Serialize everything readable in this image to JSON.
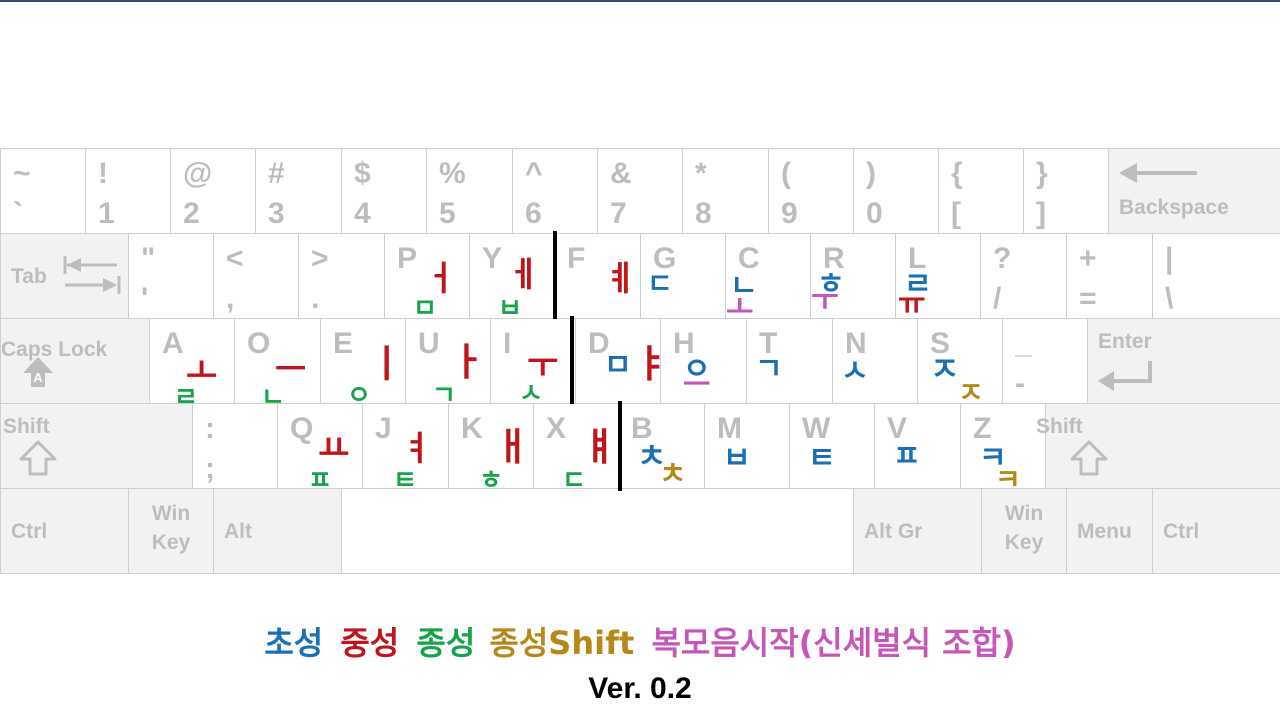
{
  "colors": {
    "choseong": "#1a6fb5",
    "jungseong": "#c0151b",
    "jongseong": "#16a34a",
    "jongseong_shift": "#b8871a",
    "bokmoeum": "#c756b9",
    "key_legend": "#bdbdbd",
    "key_border": "#cfcfcf",
    "modifier_fill": "#f2f2f2",
    "separator": "#000000"
  },
  "rows": [
    {
      "name": "number-row",
      "keys": [
        {
          "top": "~",
          "bottom": "`"
        },
        {
          "top": "!",
          "bottom": "1"
        },
        {
          "top": "@",
          "bottom": "2"
        },
        {
          "top": "#",
          "bottom": "3"
        },
        {
          "top": "$",
          "bottom": "4"
        },
        {
          "top": "%",
          "bottom": "5"
        },
        {
          "top": "^",
          "bottom": "6"
        },
        {
          "top": "&",
          "bottom": "7"
        },
        {
          "top": "*",
          "bottom": "8"
        },
        {
          "top": "(",
          "bottom": "9"
        },
        {
          "top": ")",
          "bottom": "0"
        },
        {
          "top": "{",
          "bottom": "["
        },
        {
          "top": "}",
          "bottom": "]"
        },
        {
          "label": "Backspace",
          "icon": "backspace-arrow-icon",
          "modifier": true
        }
      ]
    },
    {
      "name": "top-row",
      "keys": [
        {
          "label": "Tab",
          "icon": "tab-arrows-icon",
          "modifier": true
        },
        {
          "top": "\"",
          "bottom": "'"
        },
        {
          "top": "<",
          "bottom": ","
        },
        {
          "top": ">",
          "bottom": "."
        },
        {
          "top": "P",
          "hangul": [
            {
              "char": "ㅓ",
              "role": "jungseong"
            },
            {
              "char": "ㅁ",
              "role": "jongseong"
            }
          ]
        },
        {
          "top": "Y",
          "hangul": [
            {
              "char": "ㅔ",
              "role": "jungseong"
            },
            {
              "char": "ㅂ",
              "role": "jongseong"
            }
          ]
        },
        {
          "top": "F",
          "hangul": [
            {
              "char": "ㅖ",
              "role": "jungseong"
            }
          ]
        },
        {
          "top": "G",
          "hangul": [
            {
              "char": "ㄷ",
              "role": "choseong"
            }
          ]
        },
        {
          "top": "C",
          "hangul": [
            {
              "char": "ㄴ",
              "role": "choseong"
            },
            {
              "char": "ㅗ",
              "role": "bokmoeum"
            }
          ]
        },
        {
          "top": "R",
          "hangul": [
            {
              "char": "ㅎ",
              "role": "choseong"
            },
            {
              "char": "ㅜ",
              "role": "bokmoeum"
            }
          ]
        },
        {
          "top": "L",
          "hangul": [
            {
              "char": "ㄹ",
              "role": "choseong"
            },
            {
              "char": "ㅠ",
              "role": "jungseong"
            }
          ]
        },
        {
          "top": "?",
          "bottom": "/"
        },
        {
          "top": "+",
          "bottom": "="
        },
        {
          "top": "|",
          "bottom": "\\"
        }
      ]
    },
    {
      "name": "home-row",
      "keys": [
        {
          "label": "Caps Lock",
          "icon": "caps-lock-icon",
          "modifier": true
        },
        {
          "top": "A",
          "hangul": [
            {
              "char": "ㅗ",
              "role": "jungseong"
            },
            {
              "char": "ㄹ",
              "role": "jongseong"
            }
          ]
        },
        {
          "top": "O",
          "hangul": [
            {
              "char": "ㅡ",
              "role": "jungseong"
            },
            {
              "char": "ㄴ",
              "role": "jongseong"
            }
          ]
        },
        {
          "top": "E",
          "hangul": [
            {
              "char": "ㅣ",
              "role": "jungseong"
            },
            {
              "char": "ㅇ",
              "role": "jongseong"
            }
          ]
        },
        {
          "top": "U",
          "hangul": [
            {
              "char": "ㅏ",
              "role": "jungseong"
            },
            {
              "char": "ㄱ",
              "role": "jongseong"
            }
          ]
        },
        {
          "top": "I",
          "hangul": [
            {
              "char": "ㅜ",
              "role": "jungseong"
            },
            {
              "char": "ㅅ",
              "role": "jongseong"
            }
          ]
        },
        {
          "top": "D",
          "hangul": [
            {
              "char": "ㅁ",
              "role": "choseong"
            },
            {
              "char": "ㅑ",
              "role": "jungseong"
            }
          ]
        },
        {
          "top": "H",
          "hangul": [
            {
              "char": "ㅇ",
              "role": "choseong"
            },
            {
              "char": "ㅡ",
              "role": "bokmoeum"
            }
          ]
        },
        {
          "top": "T",
          "hangul": [
            {
              "char": "ㄱ",
              "role": "choseong"
            }
          ]
        },
        {
          "top": "N",
          "hangul": [
            {
              "char": "ㅅ",
              "role": "choseong"
            }
          ]
        },
        {
          "top": "S",
          "hangul": [
            {
              "char": "ㅈ",
              "role": "choseong"
            },
            {
              "char": "ㅈ",
              "role": "jongseong_shift"
            }
          ]
        },
        {
          "top": "_",
          "bottom": "-"
        },
        {
          "label": "Enter",
          "icon": "enter-arrow-icon",
          "modifier": true
        }
      ]
    },
    {
      "name": "bottom-row",
      "keys": [
        {
          "label": "Shift",
          "icon": "shift-arrow-icon",
          "modifier": true
        },
        {
          "top": ":",
          "bottom": ";"
        },
        {
          "top": "Q",
          "hangul": [
            {
              "char": "ㅛ",
              "role": "jungseong"
            },
            {
              "char": "ㅍ",
              "role": "jongseong"
            }
          ]
        },
        {
          "top": "J",
          "hangul": [
            {
              "char": "ㅕ",
              "role": "jungseong"
            },
            {
              "char": "ㅌ",
              "role": "jongseong"
            }
          ]
        },
        {
          "top": "K",
          "hangul": [
            {
              "char": "ㅐ",
              "role": "jungseong"
            },
            {
              "char": "ㅎ",
              "role": "jongseong"
            }
          ]
        },
        {
          "top": "X",
          "hangul": [
            {
              "char": "ㅒ",
              "role": "jungseong"
            },
            {
              "char": "ㄷ",
              "role": "jongseong"
            }
          ]
        },
        {
          "top": "B",
          "hangul": [
            {
              "char": "ㅊ",
              "role": "choseong"
            },
            {
              "char": "ㅊ",
              "role": "jongseong_shift"
            }
          ]
        },
        {
          "top": "M",
          "hangul": [
            {
              "char": "ㅂ",
              "role": "choseong"
            }
          ]
        },
        {
          "top": "W",
          "hangul": [
            {
              "char": "ㅌ",
              "role": "choseong"
            }
          ]
        },
        {
          "top": "V",
          "hangul": [
            {
              "char": "ㅍ",
              "role": "choseong"
            }
          ]
        },
        {
          "top": "Z",
          "hangul": [
            {
              "char": "ㅋ",
              "role": "choseong"
            },
            {
              "char": "ㅋ",
              "role": "jongseong_shift"
            }
          ]
        },
        {
          "label": "Shift",
          "icon": "shift-arrow-icon",
          "modifier": true
        }
      ]
    },
    {
      "name": "space-row",
      "keys": [
        {
          "label": "Ctrl",
          "modifier": true
        },
        {
          "label": "Win\nKey",
          "modifier": true
        },
        {
          "label": "Alt",
          "modifier": true
        },
        {
          "label": "",
          "space": true
        },
        {
          "label": "Alt Gr",
          "modifier": true
        },
        {
          "label": "Win\nKey",
          "modifier": true
        },
        {
          "label": "Menu",
          "modifier": true
        },
        {
          "label": "Ctrl",
          "modifier": true
        }
      ]
    }
  ],
  "legend": {
    "choseong": "초성",
    "jungseong": "중성",
    "jongseong": "종성",
    "jongseong_shift": "종성Shift",
    "bokmoeum": "복모음시작(신세벌식 조합)"
  },
  "version": "Ver. 0.2"
}
